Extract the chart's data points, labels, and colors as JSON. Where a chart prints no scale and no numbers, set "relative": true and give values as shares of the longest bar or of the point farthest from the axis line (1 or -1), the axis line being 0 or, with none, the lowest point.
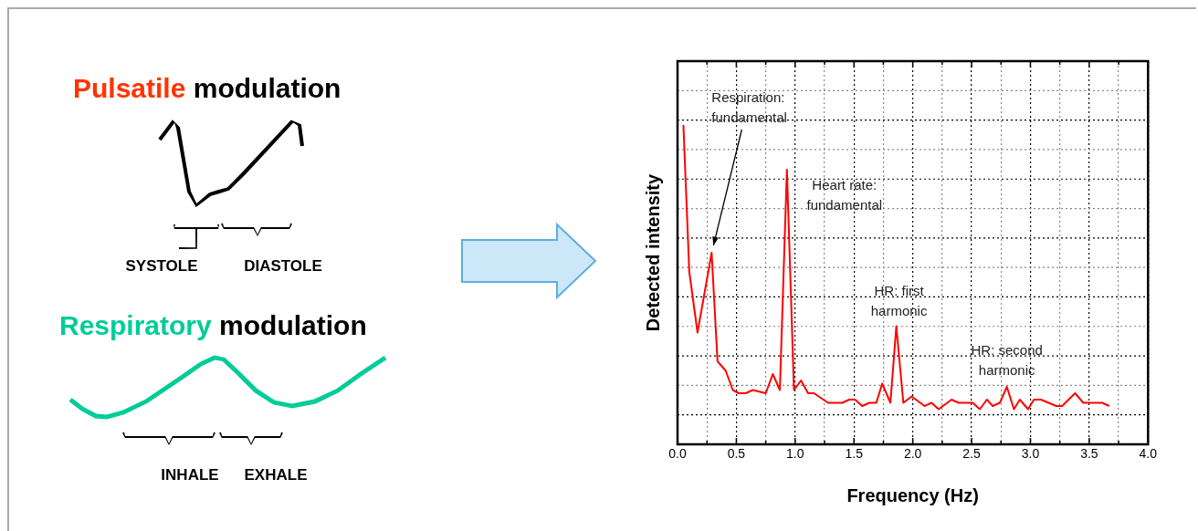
{
  "chart_data": {
    "type": "line",
    "relative": true,
    "xlabel": "Frequency (Hz)",
    "ylabel": "Detected intensity",
    "xlim": [
      0,
      4
    ],
    "xticks": [
      {
        "value": 0,
        "label": "0.0"
      },
      {
        "value": 0.25,
        "label": null
      },
      {
        "value": 0.5,
        "label": "0.5"
      },
      {
        "value": 0.75,
        "label": null
      },
      {
        "value": 1,
        "label": "1.0"
      },
      {
        "value": 1.25,
        "label": null
      },
      {
        "value": 1.5,
        "label": "1.5"
      },
      {
        "value": 1.75,
        "label": null
      },
      {
        "value": 2,
        "label": "2.0"
      },
      {
        "value": 2.25,
        "label": null
      },
      {
        "value": 2.5,
        "label": "2.5"
      },
      {
        "value": 2.75,
        "label": null
      },
      {
        "value": 3,
        "label": "3.0"
      },
      {
        "value": 3.25,
        "label": null
      },
      {
        "value": 3.5,
        "label": "3.5"
      },
      {
        "value": 3.75,
        "label": null
      },
      {
        "value": 4,
        "label": "4.0"
      }
    ],
    "grid": true,
    "legend": false,
    "marker": "none",
    "line_style": "solid",
    "series": [
      {
        "color": "#ff0000",
        "x": [
          0.05,
          0.1,
          0.17,
          0.29,
          0.34,
          0.41,
          0.47,
          0.52,
          0.58,
          0.64,
          0.75,
          0.81,
          0.87,
          0.93,
          0.99,
          1.05,
          1.11,
          1.16,
          1.28,
          1.4,
          1.46,
          1.51,
          1.57,
          1.63,
          1.69,
          1.74,
          1.81,
          1.86,
          1.92,
          1.99,
          2.1,
          2.16,
          2.22,
          2.33,
          2.39,
          2.45,
          2.51,
          2.57,
          2.63,
          2.68,
          2.74,
          2.8,
          2.86,
          2.91,
          2.98,
          3.03,
          3.09,
          3.22,
          3.27,
          3.38,
          3.45,
          3.5,
          3.56,
          3.61,
          3.67
        ],
        "values": [
          1,
          0.54,
          0.35,
          0.6,
          0.26,
          0.23,
          0.17,
          0.16,
          0.16,
          0.17,
          0.16,
          0.22,
          0.17,
          0.86,
          0.17,
          0.2,
          0.16,
          0.16,
          0.13,
          0.13,
          0.14,
          0.14,
          0.12,
          0.13,
          0.13,
          0.19,
          0.13,
          0.37,
          0.13,
          0.15,
          0.12,
          0.13,
          0.11,
          0.14,
          0.13,
          0.13,
          0.13,
          0.11,
          0.14,
          0.12,
          0.13,
          0.18,
          0.11,
          0.14,
          0.11,
          0.14,
          0.14,
          0.12,
          0.12,
          0.16,
          0.13,
          0.13,
          0.13,
          0.13,
          0.12
        ]
      }
    ],
    "annotations": [
      "Pulsatile",
      "modulation",
      "SYSTOLE",
      "DIASTOLE",
      "Respiratory",
      "modulation",
      "INHALE",
      "EXHALE",
      {
        "text": "Respiration:\nfundamental",
        "x": 0.29,
        "y": 0.6
      },
      {
        "text": "Heart rate:\nfundamental",
        "x": 0.93,
        "y": 0.86
      },
      {
        "text": "HR: first\nharmonic",
        "x": 1.86,
        "y": 0.37
      },
      {
        "text": "HR: second\nharmonic",
        "x": 2.8,
        "y": 0.18
      }
    ]
  }
}
